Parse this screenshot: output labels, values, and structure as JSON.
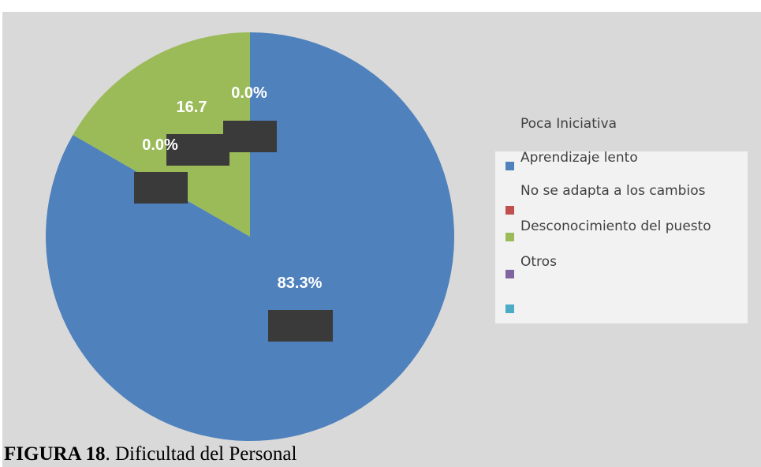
{
  "chart_data": {
    "type": "pie",
    "categories": [
      "Poca Iniciativa",
      "Aprendizaje lento",
      "No se adapta a los cambios",
      "Desconocimiento del puesto",
      "Otros"
    ],
    "colors": [
      "#4f81bd",
      "#c0504d",
      "#9bbb59",
      "#8064a2",
      "#4bacc6"
    ],
    "values": [
      83.3,
      0.0,
      16.7,
      0.0,
      0.0
    ],
    "value_labels": [
      "83.3%",
      "0.0%",
      "16.7",
      "0.0%",
      null
    ]
  },
  "caption": {
    "label": "FIGURA 18",
    "text": ". Dificultad del Personal"
  }
}
